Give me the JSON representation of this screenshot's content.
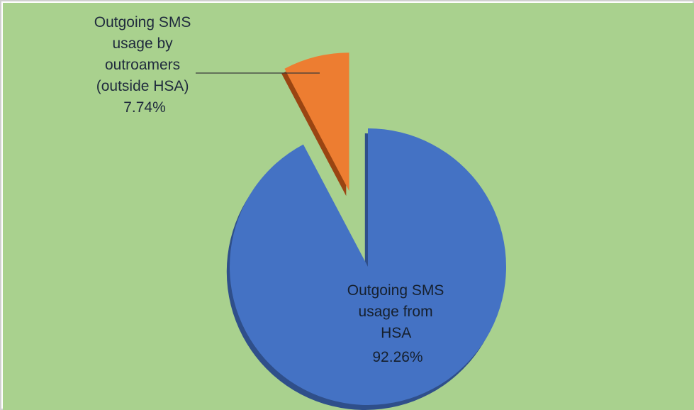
{
  "chart_data": {
    "type": "pie",
    "title": "",
    "slices": [
      {
        "label_lines": [
          "Outgoing SMS",
          "usage from",
          "HSA"
        ],
        "pct_label": "92.26%",
        "value": 92.26,
        "color": "#4472C4",
        "shadow_color": "#2f4f8a",
        "exploded": false
      },
      {
        "label_lines": [
          "Outgoing SMS",
          "usage by",
          "outroamers",
          "(outside HSA)"
        ],
        "pct_label": "7.74%",
        "value": 7.74,
        "color": "#ED7D31",
        "shadow_color": "#9a4512",
        "exploded": true
      }
    ],
    "background_color": "#A9D18E",
    "legend": "none",
    "has_leader_line": true
  }
}
